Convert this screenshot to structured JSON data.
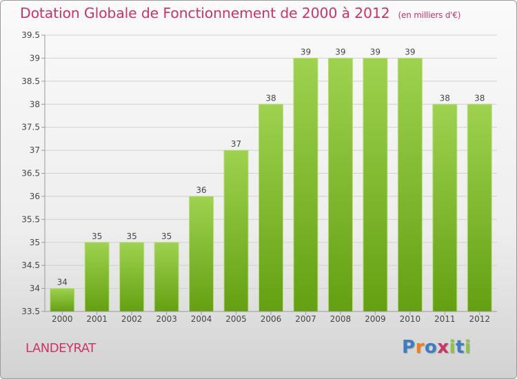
{
  "chart_data": {
    "type": "bar",
    "title": "Dotation Globale de Fonctionnement de 2000 à 2012",
    "subtitle": "(en milliers d'€)",
    "categories": [
      "2000",
      "2001",
      "2002",
      "2003",
      "2004",
      "2005",
      "2006",
      "2007",
      "2008",
      "2009",
      "2010",
      "2011",
      "2012"
    ],
    "values": [
      34,
      35,
      35,
      35,
      36,
      37,
      38,
      39,
      39,
      39,
      39,
      38,
      38
    ],
    "value_labels": [
      "34",
      "35",
      "35",
      "35",
      "36",
      "37",
      "38",
      "39",
      "39",
      "39",
      "39",
      "38",
      "38"
    ],
    "ylim": [
      33.5,
      39.5
    ],
    "yticks": [
      "33.5",
      "34",
      "34.5",
      "35",
      "35.5",
      "36",
      "36.5",
      "37",
      "37.5",
      "38",
      "38.5",
      "39",
      "39.5"
    ],
    "grid": true,
    "bar_color": "#7cb82f"
  },
  "footer": {
    "city": "LANDEYRAT",
    "brand": "Proxiti"
  },
  "colors": {
    "accent": "#cc3366",
    "brand_letters": [
      "#3a7fc1",
      "#f07f1a",
      "#3a7fc1",
      "#cc3366",
      "#8cc63f",
      "#3a7fc1",
      "#8cc63f"
    ]
  }
}
